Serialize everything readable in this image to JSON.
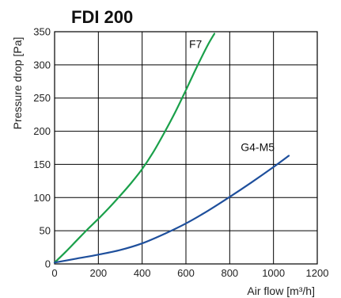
{
  "chart_data": {
    "type": "line",
    "title": "FDI 200",
    "xlabel": "Air flow [m³/h]",
    "ylabel": "Pressure drop [Pa]",
    "xlim": [
      0,
      1200
    ],
    "ylim": [
      0,
      350
    ],
    "xticks": [
      0,
      200,
      400,
      600,
      800,
      1000,
      1200
    ],
    "yticks": [
      0,
      50,
      100,
      150,
      200,
      250,
      300,
      350
    ],
    "grid": true,
    "legend": "none",
    "series": [
      {
        "name": "F7",
        "color": "#1aa04a",
        "x": [
          0,
          50,
          100,
          150,
          200,
          250,
          300,
          350,
          400,
          450,
          500,
          550,
          600,
          650,
          700,
          730
        ],
        "y": [
          2,
          18,
          35,
          52,
          68,
          85,
          103,
          122,
          143,
          168,
          197,
          228,
          262,
          297,
          330,
          347
        ]
      },
      {
        "name": "G4-M5",
        "color": "#1e4f9c",
        "x": [
          0,
          100,
          200,
          300,
          400,
          500,
          600,
          700,
          800,
          900,
          1000,
          1070
        ],
        "y": [
          2,
          8,
          14,
          21,
          31,
          45,
          61,
          80,
          101,
          123,
          146,
          163
        ]
      }
    ]
  }
}
